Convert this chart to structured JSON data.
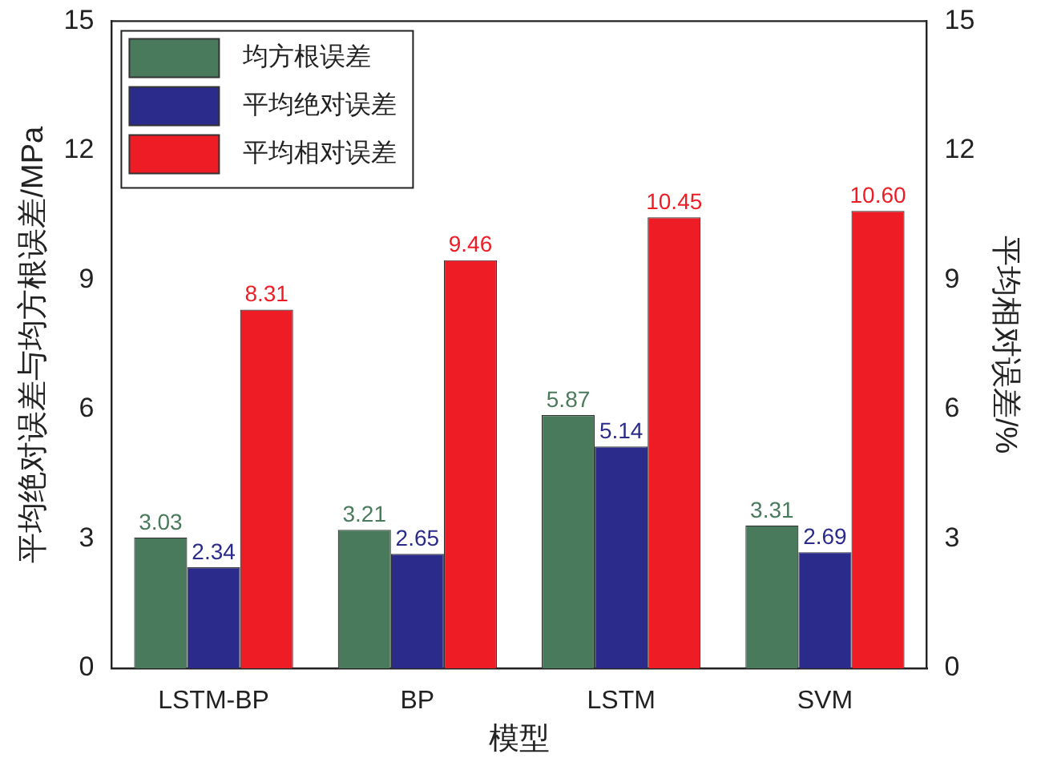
{
  "chart_data": {
    "type": "bar",
    "xlabel": "模型",
    "ylabel": "平均绝对误差与均方根误差/MPa",
    "y2label": "平均相对误差/%",
    "categories": [
      "LSTM-BP",
      "BP",
      "LSTM",
      "SVM"
    ],
    "series": [
      {
        "name": "均方根误差",
        "color": "#4a7a5c",
        "values": [
          3.03,
          3.21,
          5.87,
          3.31
        ]
      },
      {
        "name": "平均绝对误差",
        "color": "#2b2b8c",
        "values": [
          2.34,
          2.65,
          5.14,
          2.69
        ]
      },
      {
        "name": "平均相对误差",
        "color": "#ee1c24",
        "values": [
          8.31,
          9.46,
          10.45,
          10.6
        ],
        "axis": "y2",
        "value_labels": [
          "8.31",
          "9.46",
          "10.45",
          "10.60"
        ]
      }
    ],
    "ylim": [
      0,
      15
    ],
    "yticks": [
      0,
      3,
      6,
      9,
      12,
      15
    ],
    "y2lim": [
      0,
      15
    ],
    "y2ticks": [
      0,
      3,
      6,
      9,
      12,
      15
    ],
    "data_labels": true,
    "legend": "top left",
    "grid": false
  }
}
